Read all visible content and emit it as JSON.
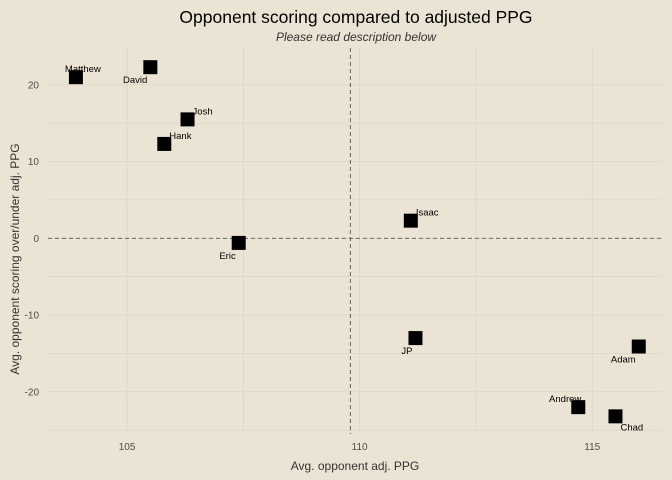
{
  "chart_data": {
    "type": "scatter",
    "title": "Opponent scoring compared to adjusted PPG",
    "subtitle": "Please read description below",
    "xlabel": "Avg. opponent adj. PPG",
    "ylabel": "Avg. opponent scoring over/under adj. PPG",
    "xlim": [
      103.3,
      116.5
    ],
    "ylim": [
      -25.5,
      24.8
    ],
    "x_ticks": [
      105,
      110,
      115
    ],
    "y_ticks": [
      -20,
      -10,
      0,
      10,
      20
    ],
    "x_tick_labels": [
      "105",
      "110",
      "115"
    ],
    "y_tick_labels": [
      "-20",
      "-10",
      "0",
      "10",
      "20"
    ],
    "reference_lines": {
      "x": 109.8,
      "y": 0
    },
    "marker_color": "#000000",
    "grid": true,
    "points": [
      {
        "name": "Matthew",
        "x": 103.9,
        "y": 21.0,
        "label_pos": "above"
      },
      {
        "name": "David",
        "x": 105.5,
        "y": 22.3,
        "label_pos": "below-left"
      },
      {
        "name": "Josh",
        "x": 106.3,
        "y": 15.5,
        "label_pos": "above-right"
      },
      {
        "name": "Hank",
        "x": 105.8,
        "y": 12.3,
        "label_pos": "above-right"
      },
      {
        "name": "Eric",
        "x": 107.4,
        "y": -0.6,
        "label_pos": "below-left"
      },
      {
        "name": "Isaac",
        "x": 111.1,
        "y": 2.3,
        "label_pos": "above-right"
      },
      {
        "name": "JP",
        "x": 111.2,
        "y": -13.0,
        "label_pos": "below-left"
      },
      {
        "name": "Adam",
        "x": 116.0,
        "y": -14.1,
        "label_pos": "below-left"
      },
      {
        "name": "Andrew",
        "x": 114.7,
        "y": -22.0,
        "label_pos": "above-left"
      },
      {
        "name": "Chad",
        "x": 115.5,
        "y": -23.2,
        "label_pos": "below-right"
      }
    ]
  }
}
